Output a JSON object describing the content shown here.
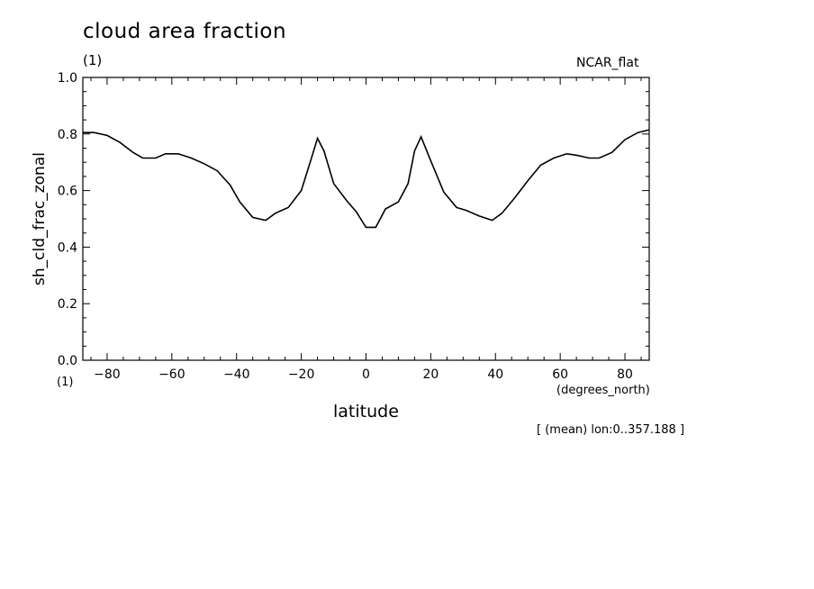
{
  "header": {
    "title": "cloud area fraction",
    "title_units": "(1)",
    "style_label": "NCAR_flat",
    "mean_note": "[ (mean) lon:0..357.188 ]"
  },
  "chart_data": {
    "type": "line",
    "title": "cloud area fraction",
    "xlabel": "latitude",
    "x_units": "(degrees_north)",
    "ylabel": "sh_cld_frac_zonal",
    "y_units": "(1)",
    "xlim": [
      -87.5,
      87.5
    ],
    "ylim": [
      0.0,
      1.0
    ],
    "x_ticks": [
      -80,
      -60,
      -40,
      -20,
      0,
      20,
      40,
      60,
      80
    ],
    "x_tick_labels": [
      "−80",
      "−60",
      "−40",
      "−20",
      "0",
      "20",
      "40",
      "60",
      "80"
    ],
    "y_ticks": [
      0.0,
      0.2,
      0.4,
      0.6,
      0.8,
      1.0
    ],
    "y_tick_labels": [
      "0.0",
      "0.2",
      "0.4",
      "0.6",
      "0.8",
      "1.0"
    ],
    "grid": false,
    "series": [
      {
        "x": [
          -87.5,
          -84,
          -80,
          -76,
          -72,
          -69,
          -65,
          -62,
          -58,
          -54,
          -50,
          -46,
          -42,
          -39,
          -35,
          -31,
          -28,
          -24,
          -20,
          -17,
          -15,
          -13,
          -10,
          -6,
          -3,
          0,
          3,
          6,
          10,
          13,
          15,
          17,
          20,
          24,
          28,
          31,
          35,
          39,
          42,
          46,
          50,
          54,
          58,
          62,
          65,
          69,
          72,
          76,
          80,
          84,
          87.5
        ],
        "y": [
          0.805,
          0.805,
          0.795,
          0.77,
          0.735,
          0.715,
          0.715,
          0.73,
          0.73,
          0.715,
          0.695,
          0.67,
          0.62,
          0.56,
          0.505,
          0.495,
          0.52,
          0.54,
          0.6,
          0.71,
          0.785,
          0.74,
          0.625,
          0.565,
          0.525,
          0.47,
          0.47,
          0.535,
          0.56,
          0.625,
          0.74,
          0.79,
          0.705,
          0.595,
          0.54,
          0.53,
          0.51,
          0.495,
          0.52,
          0.575,
          0.635,
          0.69,
          0.715,
          0.73,
          0.725,
          0.715,
          0.715,
          0.735,
          0.78,
          0.805,
          0.815
        ]
      }
    ]
  }
}
